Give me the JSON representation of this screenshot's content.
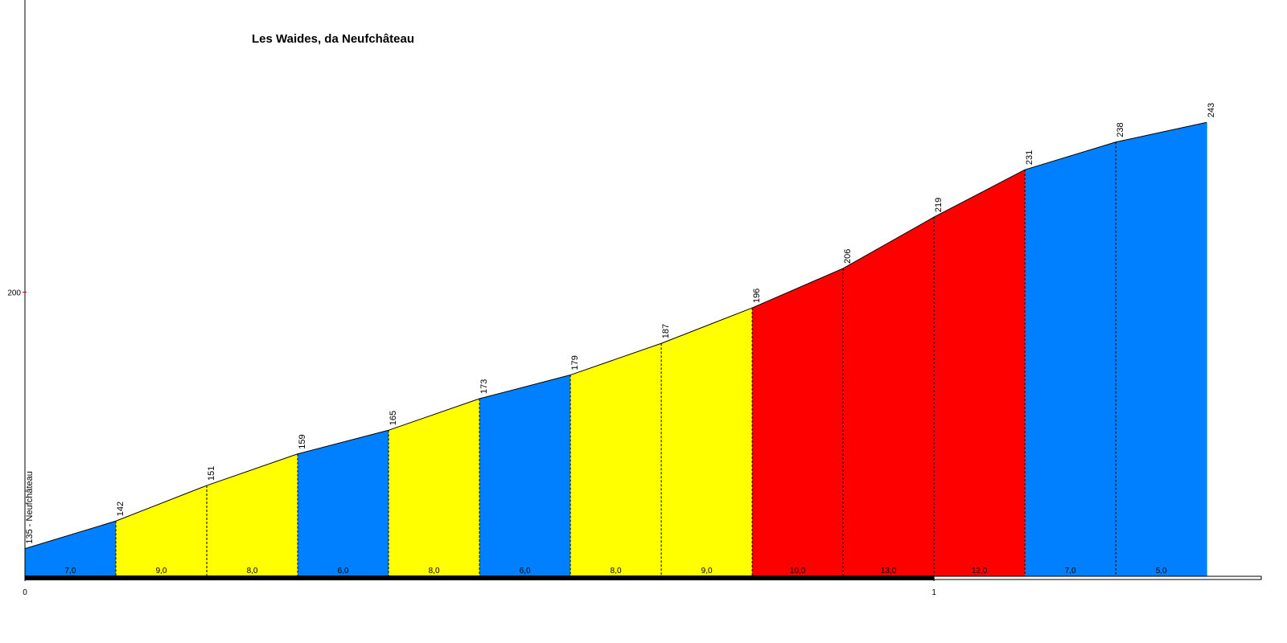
{
  "chart_data": {
    "type": "area",
    "title": "Les Waides, da Neufchâteau",
    "x": [
      0,
      0.1,
      0.2,
      0.3,
      0.4,
      0.5,
      0.6,
      0.7,
      0.8,
      0.9,
      1.0,
      1.1,
      1.2,
      1.3
    ],
    "values": [
      135,
      142,
      151,
      159,
      165,
      173,
      179,
      187,
      196,
      206,
      219,
      231,
      238,
      243
    ],
    "value_labels": [
      "135 - Neufchâteau",
      "142",
      "151",
      "159",
      "165",
      "173",
      "179",
      "187",
      "196",
      "206",
      "219",
      "231",
      "238",
      "243"
    ],
    "gradients": {
      "values": [
        7.0,
        9.0,
        8.0,
        6.0,
        8.0,
        6.0,
        8.0,
        9.0,
        10.0,
        13.0,
        12.0,
        7.0,
        5.0
      ],
      "value_labels": [
        "7,0",
        "9,0",
        "8,0",
        "6,0",
        "8,0",
        "6,0",
        "8,0",
        "9,0",
        "10,0",
        "13,0",
        "12,0",
        "7,0",
        "5,0"
      ],
      "colors": [
        "#0080ff",
        "#ffff00",
        "#ffff00",
        "#0080ff",
        "#ffff00",
        "#0080ff",
        "#ffff00",
        "#ffff00",
        "#ff0000",
        "#ff0000",
        "#ff0000",
        "#0080ff",
        "#0080ff"
      ]
    },
    "xlim": [
      0,
      1.36
    ],
    "xticks": [
      0,
      1
    ],
    "ylim": [
      128,
      274
    ],
    "yticks": [
      200
    ]
  }
}
